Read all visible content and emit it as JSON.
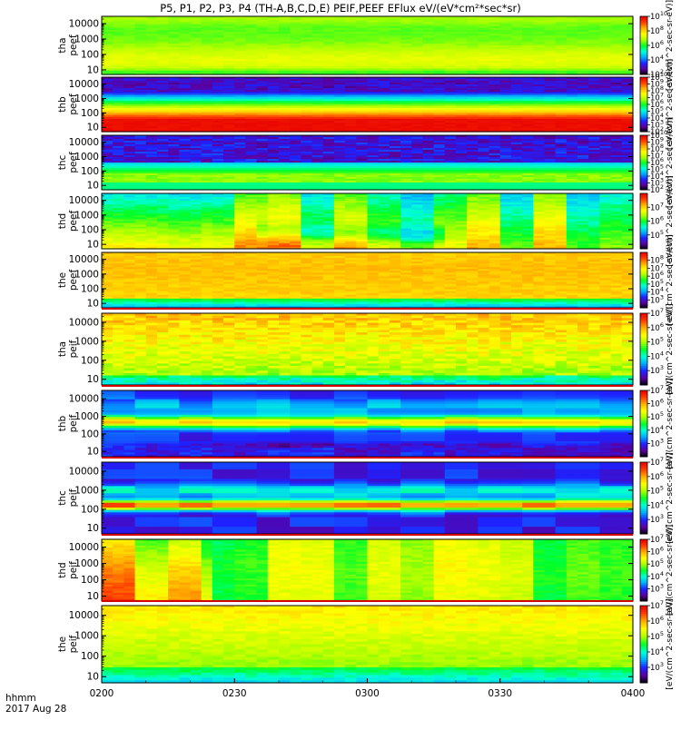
{
  "title": "P5, P1, P2, P3, P4 (TH-A,B,C,D,E) PEIF,PEEF EFlux eV/(eV*cm²*sec*sr)",
  "x_axis": {
    "ticks": [
      "0200",
      "0230",
      "0300",
      "0330",
      "0400"
    ],
    "unit_label": "hhmm",
    "date_label": "2017 Aug 28"
  },
  "colorbar_units": {
    "electron": "[eV/(cm^2-sec-sr-eV)]",
    "ion": "[eV/(cm^2-sec-sr-eV)]"
  },
  "chart_data": {
    "type": "heatmap",
    "x_range": [
      "02:00",
      "04:00"
    ],
    "y_scale": "log",
    "y_ticks": [
      10,
      100,
      1000,
      10000
    ],
    "panels": [
      {
        "probe": "tha",
        "species": "peef",
        "name": "tha peef",
        "ylim": [
          5,
          30000
        ],
        "zlim_exp": [
          2,
          10
        ],
        "cbar_exp": [
          2,
          4,
          6,
          8,
          10
        ],
        "pattern": "thaE"
      },
      {
        "probe": "thb",
        "species": "peef",
        "name": "thb peef",
        "ylim": [
          5,
          30000
        ],
        "zlim_exp": [
          2,
          10
        ],
        "cbar_exp": [
          2,
          3,
          4,
          5,
          6,
          7,
          8,
          9,
          10
        ],
        "pattern": "thbE"
      },
      {
        "probe": "thc",
        "species": "peef",
        "name": "thc peef",
        "ylim": [
          5,
          30000
        ],
        "zlim_exp": [
          2,
          10
        ],
        "cbar_exp": [
          2,
          3,
          4,
          5,
          6,
          7,
          8,
          9,
          10
        ],
        "pattern": "thcE"
      },
      {
        "probe": "thd",
        "species": "peef",
        "name": "thd peef",
        "ylim": [
          5,
          30000
        ],
        "zlim_exp": [
          4,
          8
        ],
        "cbar_exp": [
          5,
          6,
          7
        ],
        "pattern": "thdE"
      },
      {
        "probe": "the",
        "species": "peef",
        "name": "the peef",
        "ylim": [
          5,
          30000
        ],
        "zlim_exp": [
          2,
          9
        ],
        "cbar_exp": [
          3,
          4,
          5,
          6,
          7,
          8
        ],
        "pattern": "theE"
      },
      {
        "probe": "tha",
        "species": "peif",
        "name": "tha peif",
        "ylim": [
          5,
          30000
        ],
        "zlim_exp": [
          2,
          7
        ],
        "cbar_exp": [
          3,
          4,
          5,
          6,
          7
        ],
        "pattern": "thaI"
      },
      {
        "probe": "thb",
        "species": "peif",
        "name": "thb peif",
        "ylim": [
          5,
          30000
        ],
        "zlim_exp": [
          2,
          7
        ],
        "cbar_exp": [
          3,
          4,
          5,
          6,
          7
        ],
        "pattern": "thbI"
      },
      {
        "probe": "thc",
        "species": "peif",
        "name": "thc peif",
        "ylim": [
          5,
          30000
        ],
        "zlim_exp": [
          2,
          7
        ],
        "cbar_exp": [
          3,
          4,
          5,
          6,
          7
        ],
        "pattern": "thcI"
      },
      {
        "probe": "thd",
        "species": "peif",
        "name": "thd peif",
        "ylim": [
          5,
          30000
        ],
        "zlim_exp": [
          2,
          7
        ],
        "cbar_exp": [
          3,
          4,
          5,
          6,
          7
        ],
        "pattern": "thdI"
      },
      {
        "probe": "the",
        "species": "peif",
        "name": "the peif",
        "ylim": [
          5,
          30000
        ],
        "zlim_exp": [
          2,
          7
        ],
        "cbar_exp": [
          3,
          4,
          5,
          6,
          7
        ],
        "pattern": "theI"
      }
    ]
  },
  "colors": {
    "colormap": [
      "#000000",
      "#5a00a0",
      "#1e22ff",
      "#00aaff",
      "#00ffd8",
      "#00ff28",
      "#a8ff00",
      "#ffff00",
      "#ffb000",
      "#ff4000",
      "#e80000"
    ]
  }
}
